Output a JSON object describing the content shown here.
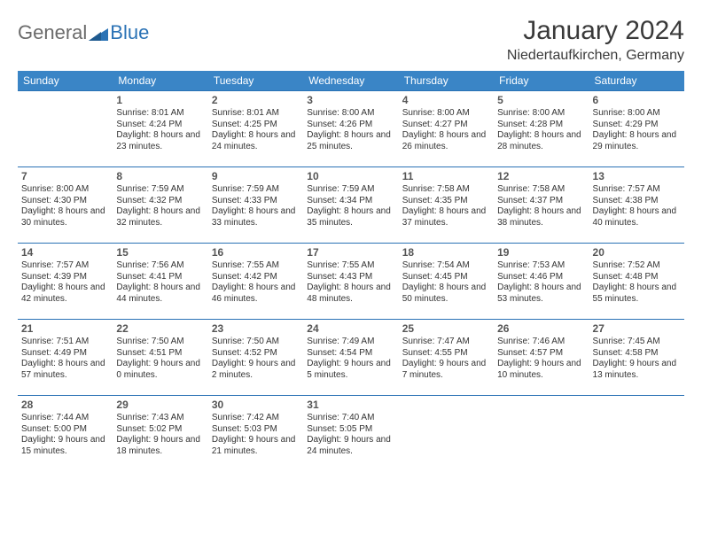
{
  "logo": {
    "general": "General",
    "blue": "Blue"
  },
  "title": "January 2024",
  "location": "Niedertaufkirchen, Germany",
  "colors": {
    "header_bg": "#3a85c6",
    "header_text": "#ffffff",
    "cell_border": "#2a72b5",
    "daynum": "#555555",
    "body_text": "#333333",
    "logo_gray": "#6b6b6b",
    "logo_blue": "#2a72b5"
  },
  "weekdays": [
    "Sunday",
    "Monday",
    "Tuesday",
    "Wednesday",
    "Thursday",
    "Friday",
    "Saturday"
  ],
  "weeks": [
    [
      null,
      {
        "n": "1",
        "sr": "8:01 AM",
        "ss": "4:24 PM",
        "dl": "8 hours and 23 minutes."
      },
      {
        "n": "2",
        "sr": "8:01 AM",
        "ss": "4:25 PM",
        "dl": "8 hours and 24 minutes."
      },
      {
        "n": "3",
        "sr": "8:00 AM",
        "ss": "4:26 PM",
        "dl": "8 hours and 25 minutes."
      },
      {
        "n": "4",
        "sr": "8:00 AM",
        "ss": "4:27 PM",
        "dl": "8 hours and 26 minutes."
      },
      {
        "n": "5",
        "sr": "8:00 AM",
        "ss": "4:28 PM",
        "dl": "8 hours and 28 minutes."
      },
      {
        "n": "6",
        "sr": "8:00 AM",
        "ss": "4:29 PM",
        "dl": "8 hours and 29 minutes."
      }
    ],
    [
      {
        "n": "7",
        "sr": "8:00 AM",
        "ss": "4:30 PM",
        "dl": "8 hours and 30 minutes."
      },
      {
        "n": "8",
        "sr": "7:59 AM",
        "ss": "4:32 PM",
        "dl": "8 hours and 32 minutes."
      },
      {
        "n": "9",
        "sr": "7:59 AM",
        "ss": "4:33 PM",
        "dl": "8 hours and 33 minutes."
      },
      {
        "n": "10",
        "sr": "7:59 AM",
        "ss": "4:34 PM",
        "dl": "8 hours and 35 minutes."
      },
      {
        "n": "11",
        "sr": "7:58 AM",
        "ss": "4:35 PM",
        "dl": "8 hours and 37 minutes."
      },
      {
        "n": "12",
        "sr": "7:58 AM",
        "ss": "4:37 PM",
        "dl": "8 hours and 38 minutes."
      },
      {
        "n": "13",
        "sr": "7:57 AM",
        "ss": "4:38 PM",
        "dl": "8 hours and 40 minutes."
      }
    ],
    [
      {
        "n": "14",
        "sr": "7:57 AM",
        "ss": "4:39 PM",
        "dl": "8 hours and 42 minutes."
      },
      {
        "n": "15",
        "sr": "7:56 AM",
        "ss": "4:41 PM",
        "dl": "8 hours and 44 minutes."
      },
      {
        "n": "16",
        "sr": "7:55 AM",
        "ss": "4:42 PM",
        "dl": "8 hours and 46 minutes."
      },
      {
        "n": "17",
        "sr": "7:55 AM",
        "ss": "4:43 PM",
        "dl": "8 hours and 48 minutes."
      },
      {
        "n": "18",
        "sr": "7:54 AM",
        "ss": "4:45 PM",
        "dl": "8 hours and 50 minutes."
      },
      {
        "n": "19",
        "sr": "7:53 AM",
        "ss": "4:46 PM",
        "dl": "8 hours and 53 minutes."
      },
      {
        "n": "20",
        "sr": "7:52 AM",
        "ss": "4:48 PM",
        "dl": "8 hours and 55 minutes."
      }
    ],
    [
      {
        "n": "21",
        "sr": "7:51 AM",
        "ss": "4:49 PM",
        "dl": "8 hours and 57 minutes."
      },
      {
        "n": "22",
        "sr": "7:50 AM",
        "ss": "4:51 PM",
        "dl": "9 hours and 0 minutes."
      },
      {
        "n": "23",
        "sr": "7:50 AM",
        "ss": "4:52 PM",
        "dl": "9 hours and 2 minutes."
      },
      {
        "n": "24",
        "sr": "7:49 AM",
        "ss": "4:54 PM",
        "dl": "9 hours and 5 minutes."
      },
      {
        "n": "25",
        "sr": "7:47 AM",
        "ss": "4:55 PM",
        "dl": "9 hours and 7 minutes."
      },
      {
        "n": "26",
        "sr": "7:46 AM",
        "ss": "4:57 PM",
        "dl": "9 hours and 10 minutes."
      },
      {
        "n": "27",
        "sr": "7:45 AM",
        "ss": "4:58 PM",
        "dl": "9 hours and 13 minutes."
      }
    ],
    [
      {
        "n": "28",
        "sr": "7:44 AM",
        "ss": "5:00 PM",
        "dl": "9 hours and 15 minutes."
      },
      {
        "n": "29",
        "sr": "7:43 AM",
        "ss": "5:02 PM",
        "dl": "9 hours and 18 minutes."
      },
      {
        "n": "30",
        "sr": "7:42 AM",
        "ss": "5:03 PM",
        "dl": "9 hours and 21 minutes."
      },
      {
        "n": "31",
        "sr": "7:40 AM",
        "ss": "5:05 PM",
        "dl": "9 hours and 24 minutes."
      },
      null,
      null,
      null
    ]
  ],
  "labels": {
    "sunrise": "Sunrise: ",
    "sunset": "Sunset: ",
    "daylight": "Daylight: "
  }
}
